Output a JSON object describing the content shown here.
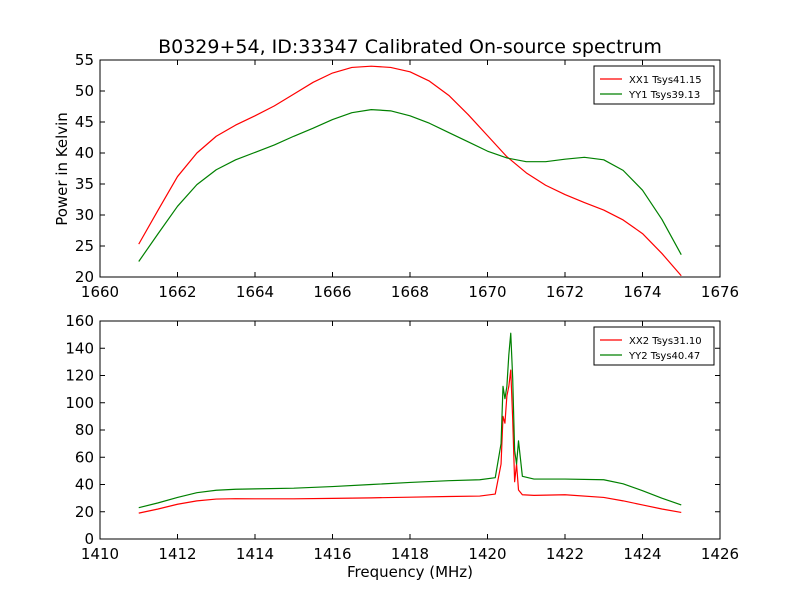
{
  "figure": {
    "title": "B0329+54, ID:33347 Calibrated On-source spectrum",
    "xlabel_bottom": "Frequency (MHz)",
    "ylabel_top": "Power in Kelvin"
  },
  "colors": {
    "red": "#ff0000",
    "green": "#008000",
    "axes": "#000000"
  },
  "chart_data": [
    {
      "type": "line",
      "title": "B0329+54, ID:33347 Calibrated On-source spectrum",
      "xlabel": "",
      "ylabel": "Power in Kelvin",
      "xlim": [
        1660,
        1676
      ],
      "ylim": [
        20,
        55
      ],
      "xticks": [
        1660,
        1662,
        1664,
        1666,
        1668,
        1670,
        1672,
        1674,
        1676
      ],
      "yticks": [
        20,
        25,
        30,
        35,
        40,
        45,
        50,
        55
      ],
      "grid": false,
      "legend": "top-right",
      "series": [
        {
          "name": "XX1 Tsys41.15",
          "color": "#ff0000",
          "x": [
            1661,
            1661.5,
            1662,
            1662.5,
            1663,
            1663.5,
            1664,
            1664.5,
            1665,
            1665.5,
            1666,
            1666.5,
            1667,
            1667.5,
            1668,
            1668.5,
            1669,
            1669.5,
            1670,
            1670.5,
            1671,
            1671.5,
            1672,
            1672.5,
            1673,
            1673.5,
            1674,
            1674.5,
            1675
          ],
          "y": [
            25.3,
            30.8,
            36.2,
            40.0,
            42.7,
            44.5,
            46.0,
            47.6,
            49.5,
            51.4,
            52.9,
            53.8,
            54.0,
            53.8,
            53.1,
            51.6,
            49.3,
            46.2,
            42.8,
            39.4,
            36.8,
            34.8,
            33.3,
            32.0,
            30.8,
            29.2,
            27.0,
            23.8,
            20.2
          ]
        },
        {
          "name": "YY1 Tsys39.13",
          "color": "#008000",
          "x": [
            1661,
            1661.5,
            1662,
            1662.5,
            1663,
            1663.5,
            1664,
            1664.5,
            1665,
            1665.5,
            1666,
            1666.5,
            1667,
            1667.5,
            1668,
            1668.5,
            1669,
            1669.5,
            1670,
            1670.5,
            1671,
            1671.5,
            1672,
            1672.5,
            1673,
            1673.5,
            1674,
            1674.5,
            1675
          ],
          "y": [
            22.5,
            27.0,
            31.4,
            34.9,
            37.3,
            38.9,
            40.1,
            41.3,
            42.7,
            44.0,
            45.4,
            46.5,
            47.0,
            46.8,
            46.0,
            44.8,
            43.3,
            41.8,
            40.3,
            39.2,
            38.6,
            38.6,
            39.0,
            39.3,
            38.9,
            37.2,
            34.0,
            29.3,
            23.6
          ]
        }
      ]
    },
    {
      "type": "line",
      "title": "",
      "xlabel": "Frequency (MHz)",
      "ylabel": "",
      "xlim": [
        1410,
        1426
      ],
      "ylim": [
        0,
        160
      ],
      "xticks": [
        1410,
        1412,
        1414,
        1416,
        1418,
        1420,
        1422,
        1424,
        1426
      ],
      "yticks": [
        0,
        20,
        40,
        60,
        80,
        100,
        120,
        140,
        160
      ],
      "grid": false,
      "legend": "top-right",
      "series": [
        {
          "name": "XX2 Tsys31.10",
          "color": "#ff0000",
          "x": [
            1411,
            1411.5,
            1412,
            1412.5,
            1413,
            1413.5,
            1414,
            1415,
            1416,
            1417,
            1418,
            1419,
            1419.8,
            1420.2,
            1420.35,
            1420.4,
            1420.45,
            1420.5,
            1420.55,
            1420.6,
            1420.65,
            1420.7,
            1420.75,
            1420.8,
            1420.9,
            1421.2,
            1422,
            1423,
            1423.5,
            1424,
            1424.5,
            1425
          ],
          "y": [
            19,
            22,
            25.5,
            28,
            29.3,
            29.6,
            29.5,
            29.5,
            29.8,
            30.2,
            30.7,
            31.2,
            31.5,
            33,
            55,
            90,
            85,
            105,
            112,
            124,
            88,
            42,
            55,
            36,
            32.5,
            32,
            32.5,
            30.5,
            28,
            25,
            22,
            19.5
          ]
        },
        {
          "name": "YY2 Tsys40.47",
          "color": "#008000",
          "x": [
            1411,
            1411.5,
            1412,
            1412.5,
            1413,
            1413.5,
            1414,
            1415,
            1416,
            1417,
            1418,
            1419,
            1419.8,
            1420.2,
            1420.35,
            1420.4,
            1420.45,
            1420.5,
            1420.55,
            1420.6,
            1420.65,
            1420.7,
            1420.75,
            1420.8,
            1420.9,
            1421.2,
            1422,
            1423,
            1423.5,
            1424,
            1424.5,
            1425
          ],
          "y": [
            23,
            26.5,
            30.5,
            34,
            35.8,
            36.5,
            36.8,
            37.3,
            38.5,
            40,
            41.5,
            42.8,
            43.5,
            45,
            70,
            112,
            103,
            112,
            135,
            151,
            118,
            65,
            55,
            72,
            46,
            44,
            44,
            43.5,
            40.5,
            35.5,
            30,
            25
          ]
        }
      ]
    }
  ]
}
